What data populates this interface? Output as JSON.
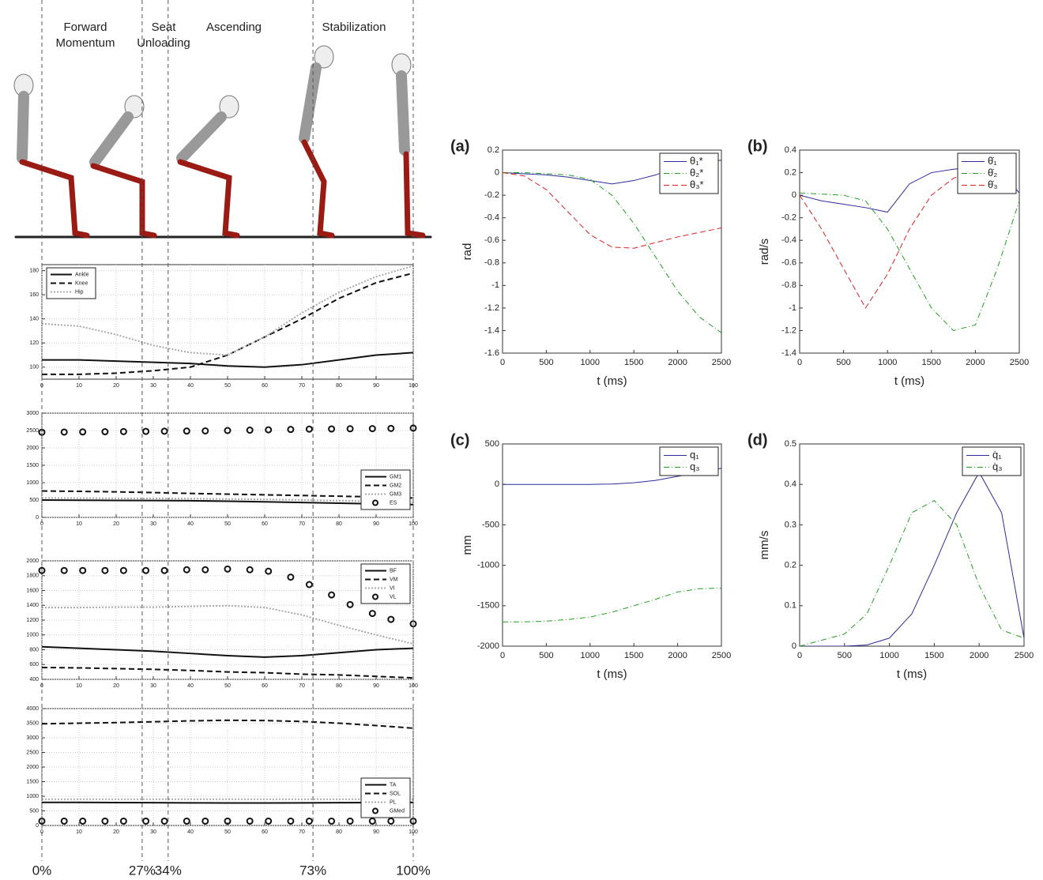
{
  "phase_labels": [
    [
      "Forward",
      "Momentum"
    ],
    [
      "Seat",
      "Unloading"
    ],
    [
      "Ascending"
    ],
    [
      "Stabilization"
    ]
  ],
  "phase_markers": [
    {
      "value": 0,
      "label": "0%"
    },
    {
      "value": 27,
      "label": "27%"
    },
    {
      "value": 34,
      "label": "34%"
    },
    {
      "value": 73,
      "label": "73%"
    },
    {
      "value": 100,
      "label": "100%"
    }
  ],
  "chart_data": [
    {
      "type": "line",
      "grid": true,
      "legend": "upper left",
      "x": [
        0,
        10,
        20,
        30,
        40,
        50,
        60,
        70,
        80,
        90,
        100
      ],
      "xlim": [
        0,
        100
      ],
      "xticks": [
        0,
        10,
        20,
        30,
        40,
        50,
        60,
        70,
        80,
        90,
        100
      ],
      "ylim": [
        90,
        185
      ],
      "yticks": [
        100,
        120,
        140,
        160,
        180
      ],
      "series": [
        {
          "name": "Ankle",
          "color": "#111111",
          "style": "solid",
          "values": [
            106,
            106,
            105,
            104,
            103,
            101,
            100,
            102,
            106,
            110,
            112
          ]
        },
        {
          "name": "Knee",
          "color": "#111111",
          "style": "dashed",
          "values": [
            94,
            94,
            95,
            97,
            100,
            110,
            125,
            140,
            157,
            170,
            178
          ]
        },
        {
          "name": "Hip",
          "color": "#aaaaaa",
          "style": "dotted",
          "values": [
            136,
            134,
            127,
            118,
            112,
            110,
            125,
            145,
            162,
            175,
            184
          ]
        }
      ]
    },
    {
      "type": "line",
      "grid": true,
      "legend": "lower right",
      "x": [
        0,
        10,
        20,
        30,
        40,
        50,
        60,
        70,
        80,
        90,
        100
      ],
      "xlim": [
        0,
        100
      ],
      "xticks": [
        0,
        10,
        20,
        30,
        40,
        50,
        60,
        70,
        80,
        90,
        100
      ],
      "ylim": [
        0,
        3000
      ],
      "yticks": [
        0,
        500,
        1000,
        1500,
        2000,
        2500,
        3000
      ],
      "series": [
        {
          "name": "GM1",
          "color": "#111111",
          "style": "solid",
          "values": [
            500,
            495,
            490,
            485,
            480,
            465,
            450,
            430,
            410,
            390,
            370
          ]
        },
        {
          "name": "GM2",
          "color": "#111111",
          "style": "dashed",
          "values": [
            760,
            750,
            735,
            715,
            690,
            670,
            650,
            630,
            610,
            590,
            560
          ]
        },
        {
          "name": "GM3",
          "color": "#aaaaaa",
          "style": "dotted",
          "values": [
            560,
            555,
            550,
            545,
            540,
            530,
            520,
            500,
            480,
            460,
            440
          ]
        },
        {
          "name": "ES",
          "color": "#111111",
          "style": "marker",
          "x": [
            0,
            6,
            11,
            17,
            22,
            28,
            33,
            39,
            44,
            50,
            56,
            61,
            67,
            72,
            78,
            83,
            89,
            94,
            100
          ],
          "values": [
            2450,
            2455,
            2460,
            2465,
            2470,
            2475,
            2480,
            2485,
            2490,
            2500,
            2510,
            2520,
            2530,
            2540,
            2545,
            2550,
            2555,
            2560,
            2570
          ]
        }
      ]
    },
    {
      "type": "line",
      "grid": true,
      "legend": "upper right",
      "x": [
        0,
        10,
        20,
        30,
        40,
        50,
        60,
        70,
        80,
        90,
        100
      ],
      "xlim": [
        0,
        100
      ],
      "xticks": [
        0,
        10,
        20,
        30,
        40,
        50,
        60,
        70,
        80,
        90,
        100
      ],
      "ylim": [
        400,
        2000
      ],
      "yticks": [
        400,
        600,
        800,
        1000,
        1200,
        1400,
        1600,
        1800,
        2000
      ],
      "series": [
        {
          "name": "BF",
          "color": "#111111",
          "style": "solid",
          "values": [
            840,
            820,
            800,
            780,
            750,
            720,
            700,
            720,
            760,
            800,
            820
          ]
        },
        {
          "name": "VM",
          "color": "#111111",
          "style": "dashed",
          "values": [
            560,
            555,
            545,
            535,
            520,
            500,
            490,
            470,
            460,
            440,
            420
          ]
        },
        {
          "name": "VI",
          "color": "#aaaaaa",
          "style": "dotted",
          "values": [
            1370,
            1370,
            1375,
            1375,
            1385,
            1395,
            1370,
            1270,
            1130,
            1000,
            880
          ]
        },
        {
          "name": "VL",
          "color": "#111111",
          "style": "marker",
          "x": [
            0,
            6,
            11,
            17,
            22,
            28,
            33,
            39,
            44,
            50,
            56,
            61,
            67,
            72,
            78,
            83,
            89,
            94,
            100
          ],
          "values": [
            1870,
            1870,
            1870,
            1870,
            1870,
            1870,
            1870,
            1880,
            1880,
            1890,
            1880,
            1860,
            1780,
            1680,
            1540,
            1410,
            1290,
            1210,
            1150
          ]
        }
      ]
    },
    {
      "type": "line",
      "grid": true,
      "legend": "lower right",
      "x": [
        0,
        10,
        20,
        30,
        40,
        50,
        60,
        70,
        80,
        90,
        100
      ],
      "xlim": [
        0,
        100
      ],
      "xticks": [
        0,
        10,
        20,
        30,
        40,
        50,
        60,
        70,
        80,
        90,
        100
      ],
      "ylim": [
        0,
        4000
      ],
      "yticks": [
        0,
        500,
        1000,
        1500,
        2000,
        2500,
        3000,
        3500,
        4000
      ],
      "series": [
        {
          "name": "TA",
          "color": "#111111",
          "style": "solid",
          "values": [
            790,
            790,
            785,
            780,
            775,
            770,
            770,
            775,
            780,
            785,
            790
          ]
        },
        {
          "name": "SOL",
          "color": "#111111",
          "style": "dashed",
          "values": [
            3480,
            3500,
            3520,
            3550,
            3580,
            3600,
            3590,
            3560,
            3500,
            3420,
            3330
          ]
        },
        {
          "name": "PL",
          "color": "#aaaaaa",
          "style": "dotted",
          "values": [
            900,
            900,
            900,
            900,
            900,
            900,
            900,
            900,
            900,
            900,
            900
          ]
        },
        {
          "name": "GMed",
          "color": "#111111",
          "style": "marker",
          "x": [
            0,
            6,
            11,
            17,
            22,
            28,
            33,
            39,
            44,
            50,
            56,
            61,
            67,
            72,
            78,
            83,
            89,
            94,
            100
          ],
          "values": [
            150,
            150,
            150,
            150,
            150,
            150,
            150,
            150,
            150,
            150,
            150,
            150,
            150,
            150,
            150,
            150,
            150,
            150,
            150
          ]
        }
      ]
    },
    {
      "type": "line",
      "panel": "(a)",
      "grid": false,
      "legend": "upper right",
      "xlabel": "t (ms)",
      "ylabel": "rad",
      "x": [
        0,
        250,
        500,
        750,
        1000,
        1250,
        1500,
        1750,
        2000,
        2250,
        2500
      ],
      "xlim": [
        0,
        2500
      ],
      "xticks": [
        0,
        500,
        1000,
        1500,
        2000,
        2500
      ],
      "ylim": [
        -1.6,
        0.2
      ],
      "yticks": [
        -1.6,
        -1.4,
        -1.2,
        -1,
        -0.8,
        -0.6,
        -0.4,
        -0.2,
        0,
        0.2
      ],
      "series": [
        {
          "name": "θ₁*",
          "color": "#2b2b9a",
          "style": "solid",
          "values": [
            0,
            -0.01,
            -0.02,
            -0.04,
            -0.07,
            -0.1,
            -0.07,
            -0.02,
            0.05,
            0.1,
            0.11
          ]
        },
        {
          "name": "θ₂*",
          "color": "#22a022",
          "style": "dashdot",
          "values": [
            0,
            0,
            -0.01,
            -0.02,
            -0.06,
            -0.2,
            -0.45,
            -0.75,
            -1.05,
            -1.28,
            -1.42
          ]
        },
        {
          "name": "θ₃*",
          "color": "#dd2222",
          "style": "dashed",
          "values": [
            0,
            -0.03,
            -0.15,
            -0.35,
            -0.55,
            -0.66,
            -0.67,
            -0.62,
            -0.57,
            -0.53,
            -0.49
          ]
        }
      ]
    },
    {
      "type": "line",
      "panel": "(b)",
      "grid": false,
      "legend": "upper right",
      "xlabel": "t (ms)",
      "ylabel": "rad/s",
      "x": [
        0,
        250,
        500,
        750,
        1000,
        1250,
        1500,
        1750,
        2000,
        2250,
        2500
      ],
      "xlim": [
        0,
        2500
      ],
      "xticks": [
        0,
        500,
        1000,
        1500,
        2000,
        2500
      ],
      "ylim": [
        -1.4,
        0.4
      ],
      "yticks": [
        -1.4,
        -1.2,
        -1,
        -0.8,
        -0.6,
        -0.4,
        -0.2,
        0,
        0.2,
        0.4
      ],
      "series": [
        {
          "name": "θ̇₁",
          "color": "#2b2b9a",
          "style": "solid",
          "values": [
            0,
            -0.05,
            -0.08,
            -0.11,
            -0.15,
            0.1,
            0.2,
            0.23,
            0.25,
            0.25,
            0.02
          ]
        },
        {
          "name": "θ̇₂",
          "color": "#22a022",
          "style": "dashdot",
          "values": [
            0.02,
            0.01,
            0,
            -0.05,
            -0.3,
            -0.65,
            -1,
            -1.2,
            -1.15,
            -0.65,
            -0.05
          ]
        },
        {
          "name": "θ̇₃",
          "color": "#dd2222",
          "style": "dashed",
          "values": [
            0,
            -0.3,
            -0.65,
            -1,
            -0.7,
            -0.3,
            0,
            0.15,
            0.22,
            0.25,
            0.25
          ]
        }
      ]
    },
    {
      "type": "line",
      "panel": "(c)",
      "grid": false,
      "legend": "upper right",
      "xlabel": "t (ms)",
      "ylabel": "mm",
      "x": [
        0,
        250,
        500,
        750,
        1000,
        1250,
        1500,
        1750,
        2000,
        2250,
        2500
      ],
      "xlim": [
        0,
        2500
      ],
      "xticks": [
        0,
        500,
        1000,
        1500,
        2000,
        2500
      ],
      "ylim": [
        -2000,
        500
      ],
      "yticks": [
        -2000,
        -1500,
        -1000,
        -500,
        0,
        500
      ],
      "series": [
        {
          "name": "q₁",
          "color": "#2b2b9a",
          "style": "solid",
          "values": [
            0,
            0,
            0,
            0,
            0,
            5,
            20,
            50,
            100,
            150,
            200
          ]
        },
        {
          "name": "q₃",
          "color": "#22a022",
          "style": "dashdot",
          "values": [
            -1700,
            -1700,
            -1690,
            -1670,
            -1640,
            -1580,
            -1500,
            -1420,
            -1330,
            -1290,
            -1280
          ]
        }
      ]
    },
    {
      "type": "line",
      "panel": "(d)",
      "grid": false,
      "legend": "upper right",
      "xlabel": "t (ms)",
      "ylabel": "mm/s",
      "x": [
        0,
        250,
        500,
        750,
        1000,
        1250,
        1500,
        1750,
        2000,
        2250,
        2500
      ],
      "xlim": [
        0,
        2500
      ],
      "xticks": [
        0,
        500,
        1000,
        1500,
        2000,
        2500
      ],
      "ylim": [
        0,
        0.5
      ],
      "yticks": [
        0,
        0.1,
        0.2,
        0.3,
        0.4,
        0.5
      ],
      "series": [
        {
          "name": "q̇₁",
          "color": "#2b2b9a",
          "style": "solid",
          "values": [
            0,
            0,
            0,
            0.003,
            0.02,
            0.08,
            0.2,
            0.33,
            0.43,
            0.33,
            0.02
          ]
        },
        {
          "name": "q̇₃",
          "color": "#22a022",
          "style": "dashdot",
          "values": [
            0,
            0.015,
            0.03,
            0.08,
            0.2,
            0.33,
            0.36,
            0.3,
            0.15,
            0.04,
            0.02
          ]
        }
      ]
    }
  ]
}
